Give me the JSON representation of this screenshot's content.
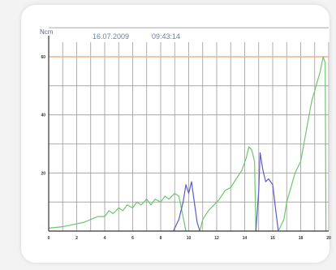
{
  "chart_data": {
    "type": "line",
    "ylabel": "Ncm",
    "date": "16.07.2009",
    "time": "09:43:14",
    "xlim": [
      0,
      20
    ],
    "ylim": [
      0,
      60
    ],
    "x_ticks": [
      "0",
      "2",
      "4",
      "6",
      "8",
      "10",
      "12",
      "14",
      "16",
      "18",
      "20"
    ],
    "y_ticks": [
      "20",
      "40",
      "60"
    ],
    "grid": true,
    "reference_line": {
      "value": 60,
      "color": "#f2b088"
    },
    "series": [
      {
        "color": "#6cc76c",
        "points": [
          [
            0,
            1
          ],
          [
            1,
            1.5
          ],
          [
            1.5,
            2
          ],
          [
            2,
            2.5
          ],
          [
            2.5,
            3
          ],
          [
            3,
            4
          ],
          [
            3.5,
            5
          ],
          [
            4,
            5
          ],
          [
            4.3,
            7
          ],
          [
            4.6,
            6
          ],
          [
            5,
            8
          ],
          [
            5.3,
            7
          ],
          [
            5.6,
            9
          ],
          [
            6,
            8
          ],
          [
            6.3,
            10
          ],
          [
            6.6,
            9
          ],
          [
            7,
            11
          ],
          [
            7.3,
            9
          ],
          [
            7.6,
            11
          ],
          [
            8,
            10
          ],
          [
            8.3,
            12
          ],
          [
            8.6,
            11
          ],
          [
            9,
            13
          ],
          [
            9.3,
            12
          ],
          [
            9.6,
            5
          ],
          [
            9.8,
            0
          ]
        ]
      },
      {
        "color": "#5c5cc4",
        "points": [
          [
            8.9,
            0
          ],
          [
            9.3,
            4
          ],
          [
            9.6,
            10
          ],
          [
            9.8,
            16
          ],
          [
            10,
            13
          ],
          [
            10.2,
            17
          ],
          [
            10.4,
            10
          ],
          [
            10.6,
            3
          ],
          [
            10.8,
            0
          ]
        ]
      },
      {
        "color": "#6cc76c",
        "points": [
          [
            10.8,
            0
          ],
          [
            11,
            4
          ],
          [
            11.4,
            7
          ],
          [
            11.8,
            9
          ],
          [
            12.2,
            11
          ],
          [
            12.6,
            14
          ],
          [
            13,
            15
          ],
          [
            13.4,
            18
          ],
          [
            13.8,
            21
          ],
          [
            14.1,
            25
          ],
          [
            14.3,
            29
          ],
          [
            14.5,
            28
          ],
          [
            14.7,
            24
          ],
          [
            14.8,
            0
          ]
        ]
      },
      {
        "color": "#5c5cc4",
        "points": [
          [
            14.8,
            0
          ],
          [
            15,
            14
          ],
          [
            15.1,
            27
          ],
          [
            15.3,
            21
          ],
          [
            15.5,
            17
          ],
          [
            15.7,
            18
          ],
          [
            16,
            16
          ],
          [
            16.2,
            8
          ],
          [
            16.4,
            0
          ]
        ]
      },
      {
        "color": "#6cc76c",
        "points": [
          [
            16.4,
            0
          ],
          [
            16.8,
            4
          ],
          [
            17,
            10
          ],
          [
            17.3,
            15
          ],
          [
            17.6,
            20
          ],
          [
            18,
            24
          ],
          [
            18.3,
            32
          ],
          [
            18.6,
            40
          ],
          [
            18.8,
            45
          ],
          [
            19.1,
            50
          ],
          [
            19.4,
            55
          ],
          [
            19.6,
            60
          ],
          [
            19.75,
            58
          ],
          [
            19.8,
            0
          ]
        ]
      }
    ]
  }
}
